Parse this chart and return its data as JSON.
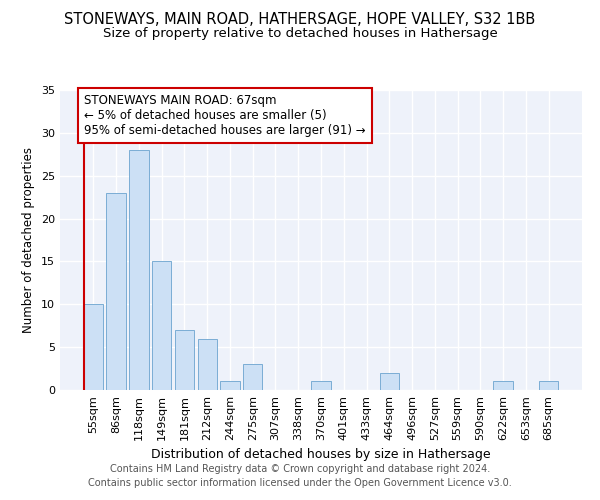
{
  "title": "STONEWAYS, MAIN ROAD, HATHERSAGE, HOPE VALLEY, S32 1BB",
  "subtitle": "Size of property relative to detached houses in Hathersage",
  "xlabel": "Distribution of detached houses by size in Hathersage",
  "ylabel": "Number of detached properties",
  "categories": [
    "55sqm",
    "86sqm",
    "118sqm",
    "149sqm",
    "181sqm",
    "212sqm",
    "244sqm",
    "275sqm",
    "307sqm",
    "338sqm",
    "370sqm",
    "401sqm",
    "433sqm",
    "464sqm",
    "496sqm",
    "527sqm",
    "559sqm",
    "590sqm",
    "622sqm",
    "653sqm",
    "685sqm"
  ],
  "values": [
    10,
    23,
    28,
    15,
    7,
    6,
    1,
    3,
    0,
    0,
    1,
    0,
    0,
    2,
    0,
    0,
    0,
    0,
    1,
    0,
    1
  ],
  "bar_color": "#cce0f5",
  "bar_edge_color": "#7aadd4",
  "annotation_box_color": "#cc0000",
  "annotation_text": "STONEWAYS MAIN ROAD: 67sqm\n← 5% of detached houses are smaller (5)\n95% of semi-detached houses are larger (91) →",
  "vline_color": "#cc0000",
  "ylim": [
    0,
    35
  ],
  "yticks": [
    0,
    5,
    10,
    15,
    20,
    25,
    30,
    35
  ],
  "footer_line1": "Contains HM Land Registry data © Crown copyright and database right 2024.",
  "footer_line2": "Contains public sector information licensed under the Open Government Licence v3.0.",
  "title_fontsize": 10.5,
  "subtitle_fontsize": 9.5,
  "xlabel_fontsize": 9,
  "ylabel_fontsize": 8.5,
  "tick_fontsize": 8,
  "annotation_fontsize": 8.5,
  "footer_fontsize": 7,
  "bg_color": "#eef2fa"
}
